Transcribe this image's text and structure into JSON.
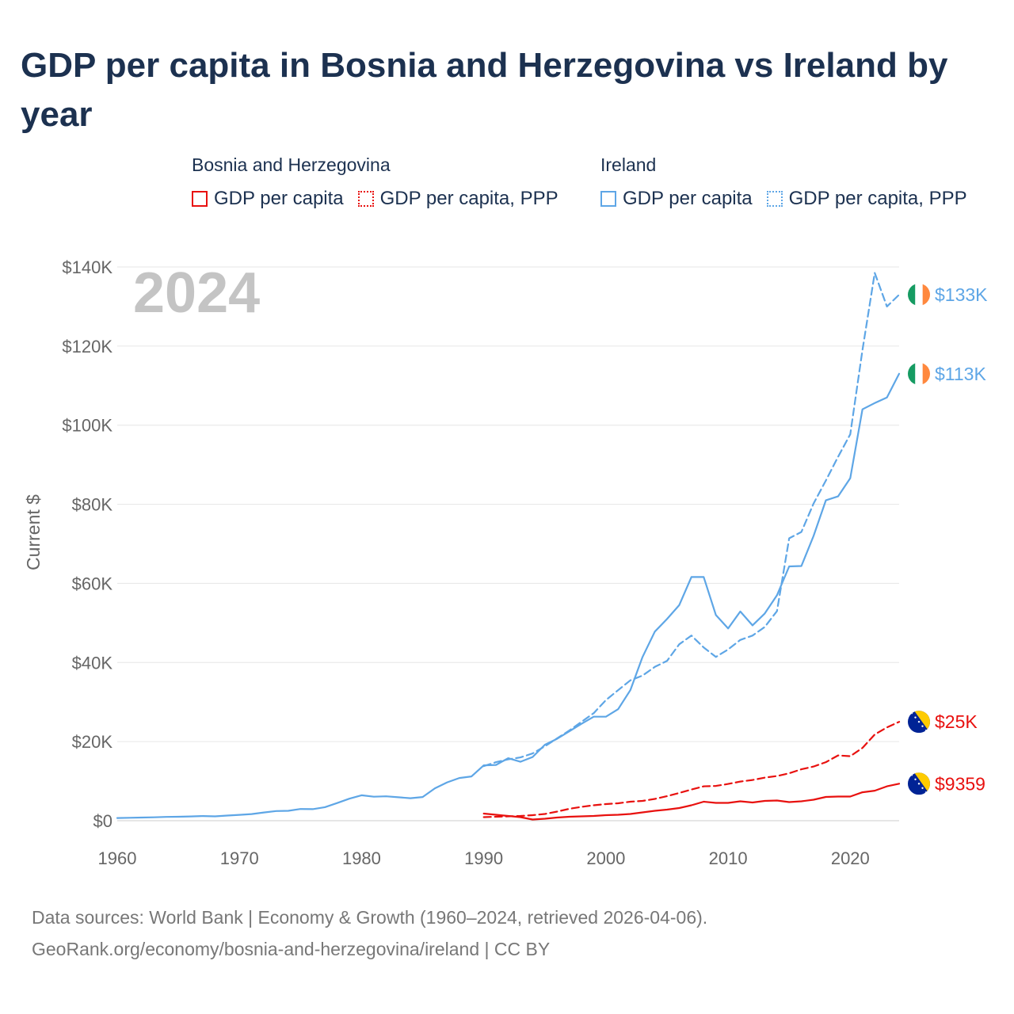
{
  "title": "GDP per capita in Bosnia and Herzegovina vs Ireland by year",
  "legend": {
    "groups": [
      {
        "heading": "Bosnia and Herzegovina",
        "items": [
          {
            "label": "GDP per capita",
            "style": "solid",
            "color": "#e8110f"
          },
          {
            "label": "GDP per capita, PPP",
            "style": "dotted",
            "color": "#e8110f"
          }
        ]
      },
      {
        "heading": "Ireland",
        "items": [
          {
            "label": "GDP per capita",
            "style": "solid",
            "color": "#5ea6e6"
          },
          {
            "label": "GDP per capita, PPP",
            "style": "dotted",
            "color": "#5ea6e6"
          }
        ]
      }
    ]
  },
  "chart_data": {
    "type": "line",
    "title": "GDP per capita in Bosnia and Herzegovina vs Ireland by year",
    "ylabel": "Current $",
    "xlabel": "",
    "year_label": "2024",
    "xlim": [
      1960,
      2024
    ],
    "ylim": [
      0,
      140000
    ],
    "x_ticks": [
      1960,
      1970,
      1980,
      1990,
      2000,
      2010,
      2020
    ],
    "y_ticks": [
      0,
      20000,
      40000,
      60000,
      80000,
      100000,
      120000,
      140000
    ],
    "y_tick_labels": [
      "$0",
      "$20K",
      "$40K",
      "$60K",
      "$80K",
      "$100K",
      "$120K",
      "$140K"
    ],
    "grid": true,
    "series": [
      {
        "name": "Ireland GDP per capita",
        "country": "Ireland",
        "color": "#5ea6e6",
        "dash": "solid",
        "end_label": "$113K",
        "flag": "ireland-flag",
        "x": [
          1960,
          1961,
          1962,
          1963,
          1964,
          1965,
          1966,
          1967,
          1968,
          1969,
          1970,
          1971,
          1972,
          1973,
          1974,
          1975,
          1976,
          1977,
          1978,
          1979,
          1980,
          1981,
          1982,
          1983,
          1984,
          1985,
          1986,
          1987,
          1988,
          1989,
          1990,
          1991,
          1992,
          1993,
          1994,
          1995,
          1996,
          1997,
          1998,
          1999,
          2000,
          2001,
          2002,
          2003,
          2004,
          2005,
          2006,
          2007,
          2008,
          2009,
          2010,
          2011,
          2012,
          2013,
          2014,
          2015,
          2016,
          2017,
          2018,
          2019,
          2020,
          2021,
          2022,
          2023,
          2024
        ],
        "values": [
          690,
          740,
          800,
          860,
          960,
          1010,
          1080,
          1190,
          1100,
          1310,
          1490,
          1690,
          2080,
          2440,
          2510,
          2970,
          2920,
          3430,
          4460,
          5560,
          6420,
          6070,
          6160,
          5930,
          5690,
          5990,
          8200,
          9700,
          10800,
          11200,
          14000,
          14100,
          15800,
          14900,
          16100,
          19200,
          20700,
          22600,
          24500,
          26300,
          26300,
          28200,
          33000,
          41400,
          47800,
          51000,
          54500,
          61600,
          61600,
          52000,
          48600,
          52900,
          49400,
          52400,
          57000,
          64300,
          64400,
          72000,
          81000,
          82000,
          86600,
          104000,
          105600,
          107000,
          113000
        ]
      },
      {
        "name": "Ireland GDP per capita, PPP",
        "country": "Ireland",
        "color": "#5ea6e6",
        "dash": "dashed",
        "end_label": "$133K",
        "flag": "ireland-flag",
        "x": [
          1990,
          1991,
          1992,
          1993,
          1994,
          1995,
          1996,
          1997,
          1998,
          1999,
          2000,
          2001,
          2002,
          2003,
          2004,
          2005,
          2006,
          2007,
          2008,
          2009,
          2010,
          2011,
          2012,
          2013,
          2014,
          2015,
          2016,
          2017,
          2018,
          2019,
          2020,
          2021,
          2022,
          2023,
          2024
        ],
        "values": [
          13800,
          14800,
          15500,
          16000,
          17000,
          18800,
          20800,
          22800,
          25000,
          27200,
          30500,
          33000,
          35500,
          36700,
          38900,
          40400,
          44600,
          46800,
          43800,
          41400,
          43300,
          45700,
          46800,
          49000,
          53000,
          71400,
          73000,
          80200,
          86000,
          92000,
          97700,
          119000,
          138500,
          130000,
          133000
        ]
      },
      {
        "name": "Bosnia and Herzegovina GDP per capita, PPP",
        "country": "Bosnia and Herzegovina",
        "color": "#e8110f",
        "dash": "dashed",
        "end_label": "$25K",
        "flag": "bosnia-flag",
        "x": [
          1990,
          1991,
          1992,
          1993,
          1994,
          1995,
          1996,
          1997,
          1998,
          1999,
          2000,
          2001,
          2002,
          2003,
          2004,
          2005,
          2006,
          2007,
          2008,
          2009,
          2010,
          2011,
          2012,
          2013,
          2014,
          2015,
          2016,
          2017,
          2018,
          2019,
          2020,
          2021,
          2022,
          2023,
          2024
        ],
        "values": [
          900,
          1000,
          1100,
          1200,
          1400,
          1700,
          2300,
          3000,
          3500,
          3900,
          4200,
          4400,
          4800,
          5000,
          5500,
          6200,
          7000,
          7900,
          8700,
          8800,
          9300,
          9900,
          10300,
          10900,
          11300,
          12000,
          13000,
          13700,
          14800,
          16500,
          16300,
          18400,
          21800,
          23600,
          25000
        ]
      },
      {
        "name": "Bosnia and Herzegovina GDP per capita",
        "country": "Bosnia and Herzegovina",
        "color": "#e8110f",
        "dash": "solid",
        "end_label": "$9359",
        "flag": "bosnia-flag",
        "x": [
          1990,
          1991,
          1992,
          1993,
          1994,
          1995,
          1996,
          1997,
          1998,
          1999,
          2000,
          2001,
          2002,
          2003,
          2004,
          2005,
          2006,
          2007,
          2008,
          2009,
          2010,
          2011,
          2012,
          2013,
          2014,
          2015,
          2016,
          2017,
          2018,
          2019,
          2020,
          2021,
          2022,
          2023,
          2024
        ],
        "values": [
          1800,
          1500,
          1200,
          900,
          300,
          500,
          800,
          1000,
          1100,
          1200,
          1400,
          1500,
          1700,
          2100,
          2500,
          2800,
          3200,
          3900,
          4800,
          4500,
          4500,
          4900,
          4600,
          5000,
          5100,
          4700,
          4900,
          5300,
          6000,
          6100,
          6100,
          7200,
          7600,
          8700,
          9359
        ]
      }
    ]
  },
  "footer": {
    "line1": "Data sources: World Bank | Economy & Growth (1960–2024, retrieved 2026-04-06).",
    "line2": "GeoRank.org/economy/bosnia-and-herzegovina/ireland | CC BY"
  }
}
